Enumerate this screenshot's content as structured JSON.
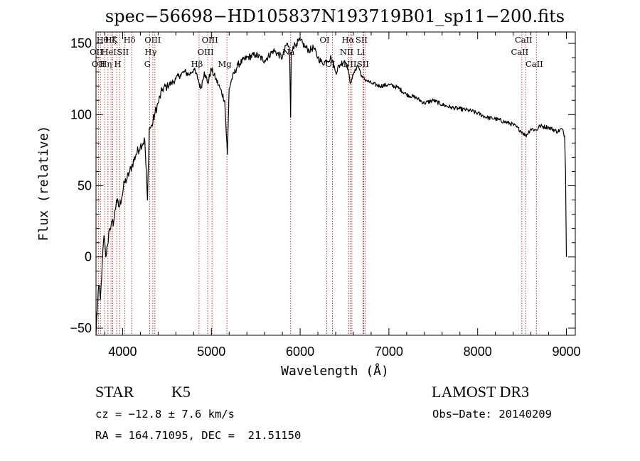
{
  "chart_data": {
    "type": "line",
    "title": "spec−56698−HD105837N193719B01_sp11−200.fits",
    "xlabel": "Wavelength (Å)",
    "ylabel": "Flux (relative)",
    "xlim": [
      3700,
      9100
    ],
    "ylim": [
      -55,
      158
    ],
    "xticks": [
      4000,
      5000,
      6000,
      7000,
      8000,
      9000
    ],
    "yticks": [
      -50,
      0,
      50,
      100,
      150
    ],
    "ytick_labels": [
      "−50",
      "0",
      "50",
      "100",
      "150"
    ],
    "grid": false,
    "series": [
      {
        "name": "flux",
        "x": [
          3700,
          3710,
          3730,
          3750,
          3770,
          3790,
          3810,
          3830,
          3850,
          3870,
          3900,
          3930,
          3960,
          3990,
          4020,
          4050,
          4080,
          4110,
          4150,
          4200,
          4250,
          4280,
          4300,
          4330,
          4360,
          4400,
          4450,
          4500,
          4550,
          4600,
          4650,
          4700,
          4750,
          4800,
          4850,
          4880,
          4920,
          4960,
          5000,
          5050,
          5100,
          5150,
          5180,
          5200,
          5230,
          5300,
          5400,
          5500,
          5600,
          5700,
          5800,
          5850,
          5880,
          5893,
          5900,
          5920,
          5960,
          6000,
          6050,
          6100,
          6150,
          6200,
          6250,
          6300,
          6350,
          6400,
          6450,
          6500,
          6540,
          6563,
          6580,
          6600,
          6650,
          6700,
          6750,
          6800,
          6900,
          7000,
          7100,
          7200,
          7300,
          7400,
          7500,
          7600,
          7700,
          7800,
          7900,
          8000,
          8100,
          8200,
          8300,
          8400,
          8498,
          8542,
          8600,
          8662,
          8700,
          8800,
          8900,
          8950,
          8980,
          8990,
          9000
        ],
        "y": [
          -55,
          -40,
          -20,
          -30,
          -5,
          15,
          0,
          8,
          20,
          22,
          25,
          40,
          35,
          42,
          52,
          55,
          60,
          65,
          72,
          78,
          82,
          40,
          90,
          92,
          100,
          108,
          118,
          120,
          122,
          125,
          128,
          130,
          128,
          132,
          125,
          118,
          130,
          122,
          132,
          125,
          118,
          110,
          72,
          118,
          125,
          135,
          140,
          142,
          138,
          145,
          140,
          150,
          146,
          98,
          143,
          148,
          150,
          152,
          148,
          145,
          147,
          140,
          136,
          138,
          140,
          130,
          135,
          138,
          132,
          122,
          125,
          128,
          135,
          126,
          124,
          122,
          120,
          121,
          119,
          114,
          112,
          108,
          110,
          107,
          105,
          104,
          103,
          101,
          98,
          97,
          95,
          93,
          88,
          85,
          90,
          89,
          92,
          91,
          88,
          90,
          85,
          60,
          0
        ]
      }
    ],
    "spectral_lines": [
      {
        "x": 3727,
        "label": "OII",
        "row": 2
      },
      {
        "x": 3750,
        "label": "OII",
        "row": 3
      },
      {
        "x": 3798,
        "label": "Hθ",
        "row": 1
      },
      {
        "x": 3835,
        "label": "Hη",
        "row": 3
      },
      {
        "x": 3869,
        "label": "HeI",
        "row": 2
      },
      {
        "x": 3889,
        "label": "Hζ",
        "row": 1
      },
      {
        "x": 3934,
        "label": "K",
        "row": 1
      },
      {
        "x": 3969,
        "label": "H",
        "row": 3
      },
      {
        "x": 4026,
        "label": "SII",
        "row": 2
      },
      {
        "x": 4102,
        "label": "Hδ",
        "row": 1
      },
      {
        "x": 4304,
        "label": "G",
        "row": 3
      },
      {
        "x": 4340,
        "label": "Hγ",
        "row": 2
      },
      {
        "x": 4363,
        "label": "OIII",
        "row": 1
      },
      {
        "x": 4861,
        "label": "Hβ",
        "row": 3
      },
      {
        "x": 4959,
        "label": "OIII",
        "row": 2
      },
      {
        "x": 5007,
        "label": "OIII",
        "row": 1
      },
      {
        "x": 5175,
        "label": "Mg",
        "row": 3
      },
      {
        "x": 5893,
        "label": "Na",
        "row": 2
      },
      {
        "x": 6300,
        "label": "OI",
        "row": 1
      },
      {
        "x": 6364,
        "label": "OI",
        "row": 3
      },
      {
        "x": 6548,
        "label": "NII",
        "row": 2
      },
      {
        "x": 6563,
        "label": "Hα",
        "row": 1
      },
      {
        "x": 6583,
        "label": "NII",
        "row": 3
      },
      {
        "x": 6708,
        "label": "Li",
        "row": 2
      },
      {
        "x": 6716,
        "label": "SII",
        "row": 1
      },
      {
        "x": 6731,
        "label": "SII",
        "row": 3
      },
      {
        "x": 8498,
        "label": "CaII",
        "row": 2
      },
      {
        "x": 8542,
        "label": "CaII",
        "row": 1
      },
      {
        "x": 8662,
        "label": "CaII",
        "row": 3
      }
    ]
  },
  "info": {
    "class": "STAR",
    "subclass": "K5",
    "survey": "LAMOST DR3",
    "cz": "cz = −12.8 ± 7.6 km/s",
    "obs_date": "Obs−Date: 20140209",
    "coords": "RA = 164.71095, DEC =  21.51150"
  }
}
